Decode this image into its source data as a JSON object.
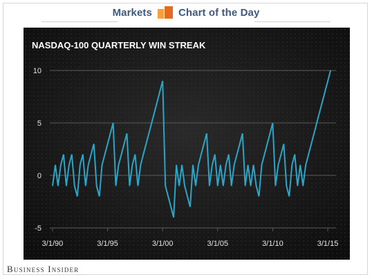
{
  "header": {
    "left_label": "Markets",
    "right_label": "Chart of the Day"
  },
  "footer": {
    "brand": "Business Insider"
  },
  "colors": {
    "background": "#1a1a1a",
    "line": "#2aa6c9",
    "grid": "#5a5a5a",
    "header_text": "#3d5a80",
    "logo_light": "#f7a13a",
    "logo_dark": "#e66a1f"
  },
  "chart_data": {
    "type": "line",
    "title": "NASDAQ-100 QUARTERLY WIN STREAK",
    "xlabel": "",
    "ylabel": "",
    "ylim": [
      -5,
      10
    ],
    "yticks": [
      -5,
      0,
      5,
      10
    ],
    "xlim": [
      1989.75,
      2015.75
    ],
    "xticks": [
      {
        "value": 1990,
        "label": "3/1/90"
      },
      {
        "value": 1995,
        "label": "3/1/95"
      },
      {
        "value": 2000,
        "label": "3/1/00"
      },
      {
        "value": 2005,
        "label": "3/1/05"
      },
      {
        "value": 2010,
        "label": "3/1/10"
      },
      {
        "value": 2015,
        "label": "3/1/15"
      }
    ],
    "grid": "horizontal",
    "series": [
      {
        "points": [
          [
            1990.0,
            -1
          ],
          [
            1990.25,
            1
          ],
          [
            1990.5,
            -1
          ],
          [
            1990.75,
            1
          ],
          [
            1991.0,
            2
          ],
          [
            1991.25,
            -1
          ],
          [
            1991.5,
            1
          ],
          [
            1991.75,
            2
          ],
          [
            1992.0,
            -1
          ],
          [
            1992.25,
            -2
          ],
          [
            1992.5,
            1
          ],
          [
            1992.75,
            2
          ],
          [
            1993.0,
            -1
          ],
          [
            1993.25,
            1
          ],
          [
            1993.5,
            2
          ],
          [
            1993.75,
            3
          ],
          [
            1994.0,
            -1
          ],
          [
            1994.25,
            -2
          ],
          [
            1994.5,
            1
          ],
          [
            1994.75,
            2
          ],
          [
            1995.0,
            3
          ],
          [
            1995.25,
            4
          ],
          [
            1995.5,
            5
          ],
          [
            1995.75,
            -1
          ],
          [
            1996.0,
            1
          ],
          [
            1996.25,
            2
          ],
          [
            1996.5,
            3
          ],
          [
            1996.75,
            4
          ],
          [
            1997.0,
            -1
          ],
          [
            1997.25,
            1
          ],
          [
            1997.5,
            2
          ],
          [
            1997.75,
            -1
          ],
          [
            1998.0,
            1
          ],
          [
            1998.25,
            2
          ],
          [
            1998.5,
            3
          ],
          [
            1998.75,
            4
          ],
          [
            1999.0,
            5
          ],
          [
            1999.25,
            6
          ],
          [
            1999.5,
            7
          ],
          [
            1999.75,
            8
          ],
          [
            2000.0,
            9
          ],
          [
            2000.25,
            -1
          ],
          [
            2000.5,
            -2
          ],
          [
            2000.75,
            -3
          ],
          [
            2001.0,
            -4
          ],
          [
            2001.25,
            1
          ],
          [
            2001.5,
            -1
          ],
          [
            2001.75,
            1
          ],
          [
            2002.0,
            -1
          ],
          [
            2002.25,
            -2
          ],
          [
            2002.5,
            -3
          ],
          [
            2002.75,
            1
          ],
          [
            2003.0,
            -1
          ],
          [
            2003.25,
            1
          ],
          [
            2003.5,
            2
          ],
          [
            2003.75,
            3
          ],
          [
            2004.0,
            4
          ],
          [
            2004.25,
            -1
          ],
          [
            2004.5,
            1
          ],
          [
            2004.75,
            2
          ],
          [
            2005.0,
            -1
          ],
          [
            2005.25,
            1
          ],
          [
            2005.5,
            -1
          ],
          [
            2005.75,
            1
          ],
          [
            2006.0,
            2
          ],
          [
            2006.25,
            -1
          ],
          [
            2006.5,
            1
          ],
          [
            2006.75,
            2
          ],
          [
            2007.0,
            3
          ],
          [
            2007.25,
            4
          ],
          [
            2007.5,
            -1
          ],
          [
            2007.75,
            1
          ],
          [
            2008.0,
            -1
          ],
          [
            2008.25,
            1
          ],
          [
            2008.5,
            -1
          ],
          [
            2008.75,
            -2
          ],
          [
            2009.0,
            1
          ],
          [
            2009.25,
            2
          ],
          [
            2009.5,
            3
          ],
          [
            2009.75,
            4
          ],
          [
            2010.0,
            5
          ],
          [
            2010.25,
            -1
          ],
          [
            2010.5,
            1
          ],
          [
            2010.75,
            2
          ],
          [
            2011.0,
            3
          ],
          [
            2011.25,
            -1
          ],
          [
            2011.5,
            -2
          ],
          [
            2011.75,
            1
          ],
          [
            2012.0,
            2
          ],
          [
            2012.25,
            -1
          ],
          [
            2012.5,
            1
          ],
          [
            2012.75,
            -1
          ],
          [
            2013.0,
            1
          ],
          [
            2013.25,
            2
          ],
          [
            2013.5,
            3
          ],
          [
            2013.75,
            4
          ],
          [
            2014.0,
            5
          ],
          [
            2014.25,
            6
          ],
          [
            2014.5,
            7
          ],
          [
            2014.75,
            8
          ],
          [
            2015.0,
            9
          ],
          [
            2015.25,
            10
          ]
        ]
      }
    ]
  }
}
